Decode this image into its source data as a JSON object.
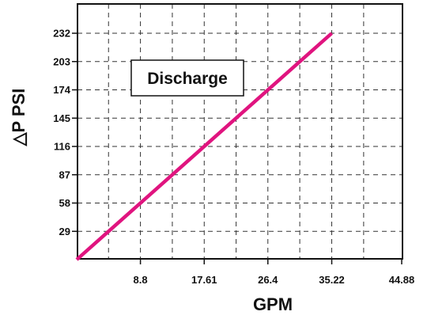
{
  "chart_data": {
    "type": "line",
    "xlabel": "GPM",
    "ylabel": "△P PSI",
    "annotation": "Discharge",
    "x_ticks": [
      "8.8",
      "17.61",
      "26.4",
      "35.22",
      "44.88"
    ],
    "y_ticks": [
      "29",
      "58",
      "87",
      "116",
      "145",
      "174",
      "203",
      "232"
    ],
    "x_tick_values": [
      8.8,
      17.61,
      26.4,
      35.22,
      44.88
    ],
    "y_tick_values": [
      29,
      58,
      87,
      116,
      145,
      174,
      203,
      232
    ],
    "xlim": [
      0,
      44.88
    ],
    "ylim": [
      0,
      232
    ],
    "grid": true,
    "series": [
      {
        "color": "#e0147f",
        "x": [
          0,
          35.22
        ],
        "y": [
          0,
          232
        ]
      }
    ]
  }
}
